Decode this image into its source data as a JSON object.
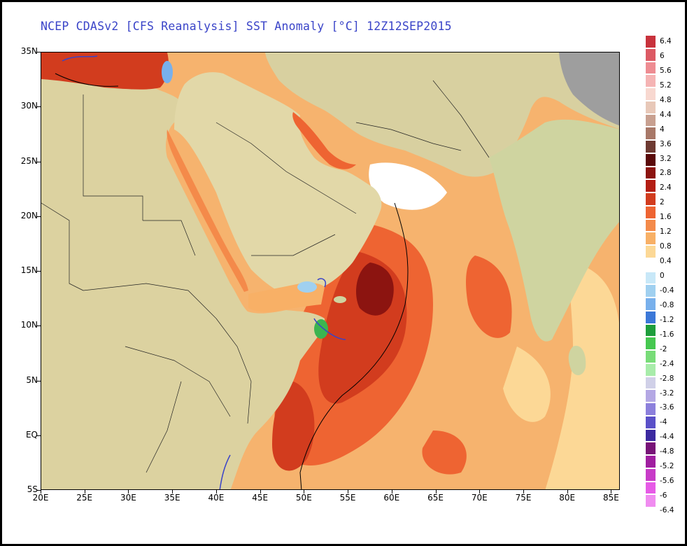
{
  "title": "NCEP CDASv2 [CFS Reanalysis] SST Anomaly [°C] 12Z12SEP2015",
  "map": {
    "lon_range": [
      20,
      86
    ],
    "lat_range": [
      -5,
      35
    ],
    "x_ticks": [
      "20E",
      "25E",
      "30E",
      "35E",
      "40E",
      "45E",
      "50E",
      "55E",
      "60E",
      "65E",
      "70E",
      "75E",
      "80E",
      "85E"
    ],
    "y_ticks": [
      "35N",
      "30N",
      "25N",
      "20N",
      "15N",
      "10N",
      "5N",
      "EQ",
      "5S"
    ],
    "land_color": "#e6d7a8",
    "ocean_base_color": "#f6b36e"
  },
  "colorbar": {
    "labels": [
      "6.4",
      "6",
      "5.6",
      "5.2",
      "4.8",
      "4.4",
      "4",
      "3.6",
      "3.2",
      "2.8",
      "2.4",
      "2",
      "1.6",
      "1.2",
      "0.8",
      "0.4",
      "0",
      "-0.4",
      "-0.8",
      "-1.2",
      "-1.6",
      "-2",
      "-2.4",
      "-2.8",
      "-3.2",
      "-3.6",
      "-4",
      "-4.4",
      "-4.8",
      "-5.2",
      "-5.6",
      "-6",
      "-6.4"
    ],
    "colors": [
      "#c8323c",
      "#dc5a64",
      "#ee8c92",
      "#f5b4b4",
      "#f8d8d0",
      "#e8c8b8",
      "#c8a090",
      "#a87868",
      "#6e3a32",
      "#5a0a0a",
      "#8c1410",
      "#b41e14",
      "#d23c1e",
      "#ee6432",
      "#f48a4a",
      "#f8b066",
      "#fcd896",
      "#ffffff",
      "#c8e8f8",
      "#a0d0f0",
      "#78b0ec",
      "#3c78d8",
      "#1e9e3c",
      "#46c850",
      "#78dc78",
      "#a8ecaa",
      "#d0d0e8",
      "#b4a8e4",
      "#8c80dc",
      "#5a50c8",
      "#3c2aa0",
      "#781478",
      "#a01ea0",
      "#c83cc8",
      "#e65ae6",
      "#f08cf0"
    ]
  }
}
